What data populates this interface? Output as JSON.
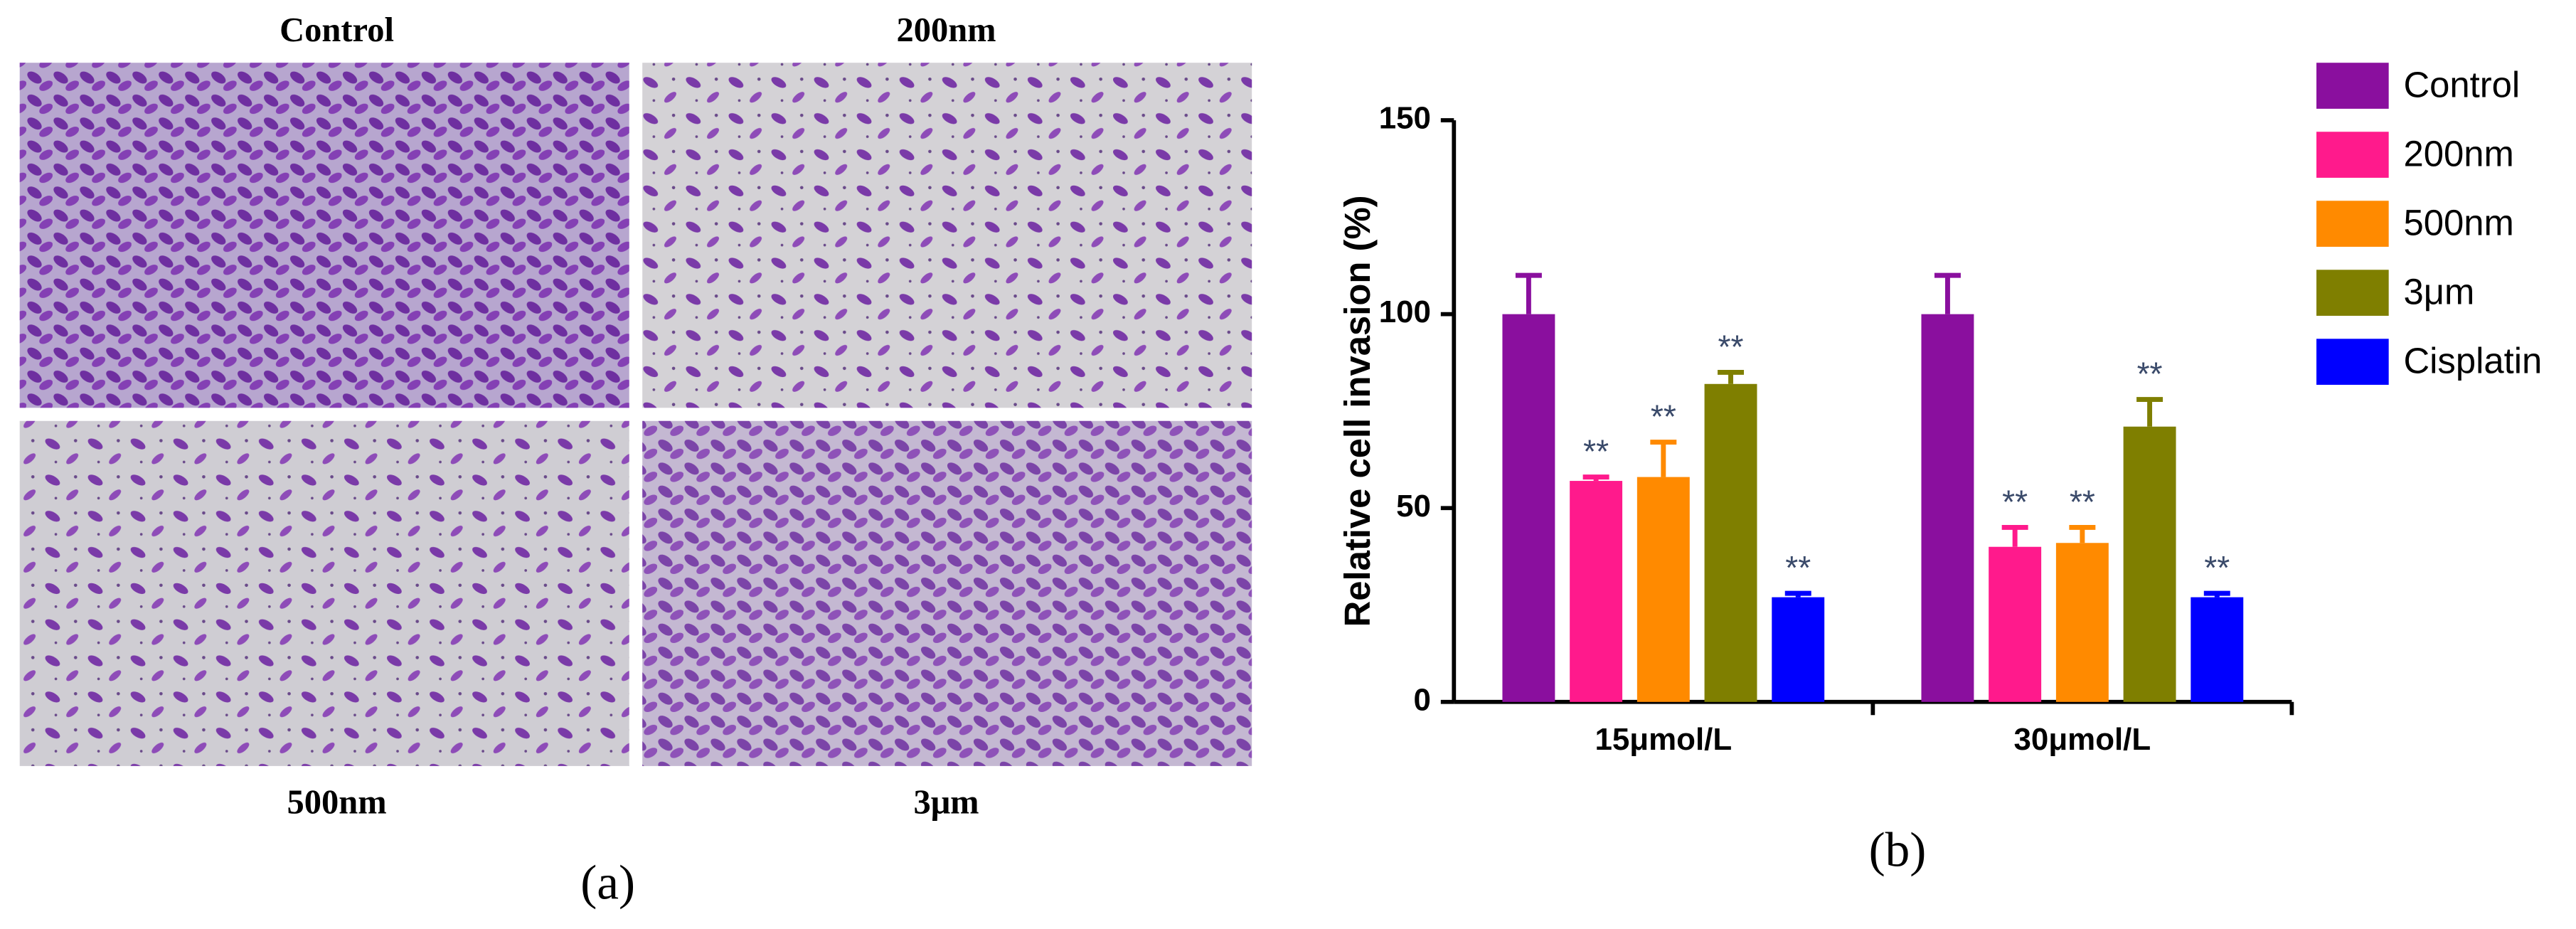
{
  "panel_a": {
    "labels": [
      "Control",
      "200nm",
      "500nm",
      "3μm"
    ],
    "caption": "(a)"
  },
  "chart_data": {
    "type": "bar",
    "caption": "(b)",
    "y_label": "Relative cell invasion (%)",
    "categories": [
      "15μmol/L",
      "30μmol/L"
    ],
    "series": [
      {
        "name": "Control",
        "color": "#8a0f9e",
        "values": [
          100,
          100
        ],
        "errors": [
          10,
          10
        ]
      },
      {
        "name": "200nm",
        "color": "#ff1a8c",
        "values": [
          57,
          40
        ],
        "errors": [
          1,
          5
        ],
        "annotations": [
          "**",
          "**"
        ]
      },
      {
        "name": "500nm",
        "color": "#ff8a00",
        "values": [
          58,
          41
        ],
        "errors": [
          9,
          4
        ],
        "annotations": [
          "**",
          "**"
        ]
      },
      {
        "name": "3μm",
        "color": "#7f7f00",
        "values": [
          82,
          71
        ],
        "errors": [
          3,
          7
        ],
        "annotations": [
          "**",
          "**"
        ]
      },
      {
        "name": "Cisplatin",
        "color": "#0000ff",
        "values": [
          27,
          27
        ],
        "errors": [
          1,
          1
        ],
        "annotations": [
          "**",
          "**"
        ]
      }
    ],
    "ylim": [
      0,
      150
    ],
    "yticks": [
      0,
      50,
      100,
      150
    ],
    "legend": "right"
  }
}
